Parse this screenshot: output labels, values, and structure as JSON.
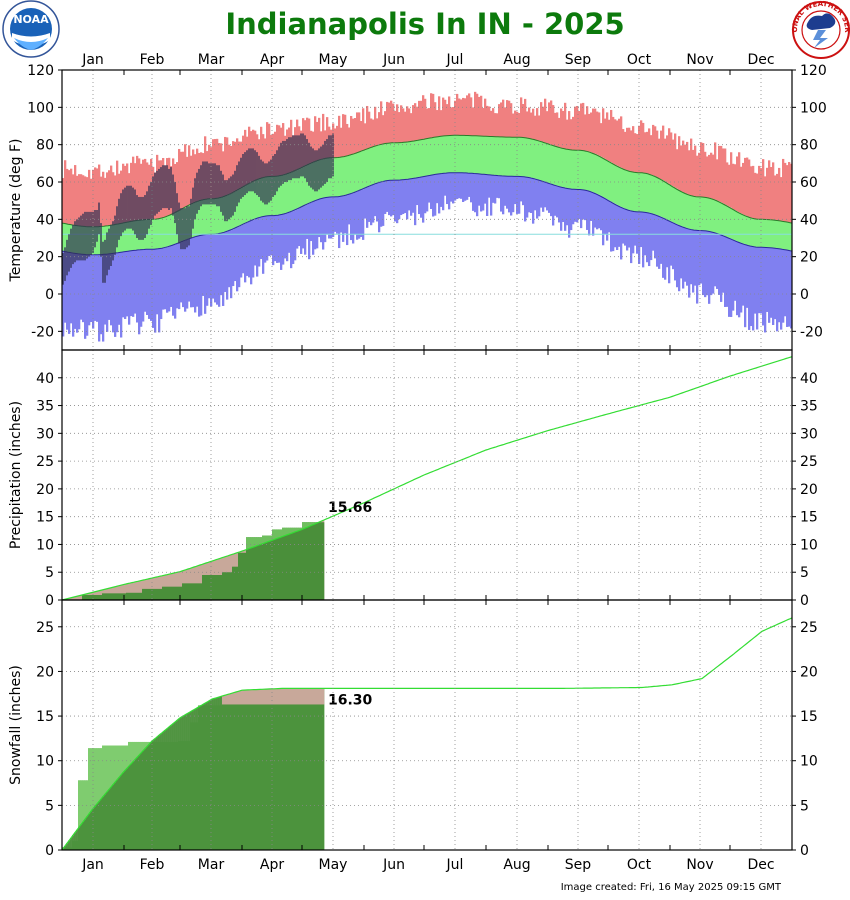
{
  "title": "Indianapolis In IN - 2025",
  "credit": "Image created: Fri, 16 May 2025 09:15 GMT",
  "logos": {
    "left": "NOAA",
    "right": "NATIONAL WEATHER SERVICE"
  },
  "months": [
    "Jan",
    "Feb",
    "Mar",
    "Apr",
    "May",
    "Jun",
    "Jul",
    "Aug",
    "Sep",
    "Oct",
    "Nov",
    "Dec"
  ],
  "colors": {
    "record_band": "#f08080",
    "normal_band": "#80f080",
    "cold_band": "#8080f0",
    "observed_bar": "#333355",
    "precip_obs": "#4a8f3a",
    "precip_norm_fill": "#c8a89a",
    "normal_line": "#33dd33"
  },
  "chart_data": [
    {
      "type": "bar",
      "title": "",
      "ylabel": "Temperature (deg F)",
      "ylim": [
        -30,
        120
      ],
      "yticks": [
        -20,
        0,
        20,
        40,
        60,
        80,
        100,
        120
      ],
      "normal_high_monthly": [
        36,
        40,
        51,
        63,
        73,
        81,
        85,
        84,
        77,
        65,
        52,
        40
      ],
      "normal_low_monthly": [
        21,
        24,
        32,
        42,
        52,
        61,
        65,
        63,
        56,
        44,
        34,
        25
      ],
      "record_high_monthly": [
        66,
        70,
        80,
        88,
        92,
        100,
        104,
        101,
        98,
        90,
        78,
        68
      ],
      "record_low_monthly": [
        -20,
        -15,
        -5,
        15,
        30,
        40,
        48,
        45,
        35,
        20,
        0,
        -15
      ],
      "observed_daily_highs_days_1_to_136": [
        22,
        25,
        29,
        32,
        35,
        37,
        39,
        40,
        41,
        42,
        43,
        44,
        44,
        44,
        44,
        44,
        45,
        45,
        49,
        38,
        28,
        29,
        33,
        35,
        37,
        39,
        42,
        47,
        51,
        54,
        56,
        57,
        58,
        58,
        58,
        57,
        56,
        53,
        52,
        52,
        52,
        53,
        55,
        58,
        60,
        63,
        65,
        66,
        67,
        68,
        69,
        69,
        69,
        67,
        68,
        64,
        60,
        54,
        49,
        46,
        46,
        46,
        47,
        47,
        51,
        57,
        62,
        65,
        67,
        69,
        71,
        71,
        71,
        70,
        70,
        70,
        70,
        69,
        69,
        66,
        64,
        61,
        61,
        62,
        63,
        64,
        66,
        69,
        71,
        73,
        75,
        76,
        77,
        78,
        78,
        78,
        77,
        76,
        74,
        72,
        71,
        70,
        70,
        71,
        72,
        74,
        75,
        77,
        79,
        81,
        82,
        82,
        83,
        84,
        84,
        85,
        85,
        85,
        85,
        86,
        86,
        85,
        83,
        81,
        79,
        78,
        77,
        77,
        78,
        79,
        80,
        82,
        83,
        85,
        85,
        86
      ],
      "observed_daily_lows_days_1_to_136": [
        5,
        7,
        10,
        12,
        14,
        16,
        17,
        18,
        18,
        18,
        18,
        18,
        19,
        20,
        21,
        22,
        25,
        28,
        32,
        20,
        6,
        6,
        10,
        13,
        15,
        18,
        21,
        25,
        29,
        31,
        33,
        34,
        35,
        35,
        35,
        34,
        32,
        30,
        29,
        29,
        29,
        30,
        32,
        35,
        37,
        40,
        42,
        43,
        44,
        45,
        46,
        46,
        46,
        45,
        46,
        42,
        38,
        32,
        27,
        24,
        24,
        24,
        25,
        26,
        30,
        35,
        40,
        43,
        45,
        47,
        48,
        48,
        48,
        48,
        48,
        48,
        48,
        47,
        47,
        44,
        42,
        39,
        39,
        40,
        41,
        42,
        44,
        47,
        49,
        51,
        52,
        53,
        54,
        55,
        55,
        55,
        54,
        53,
        52,
        50,
        49,
        48,
        48,
        49,
        50,
        52,
        53,
        55,
        57,
        58,
        59,
        60,
        60,
        61,
        61,
        62,
        62,
        62,
        62,
        63,
        63,
        62,
        60,
        58,
        57,
        56,
        55,
        55,
        56,
        57,
        58,
        59,
        60,
        62,
        62,
        63
      ]
    },
    {
      "type": "area",
      "title": "",
      "ylabel": "Precipitation (inches)",
      "ylim": [
        0,
        45
      ],
      "yticks": [
        0,
        5,
        10,
        15,
        20,
        25,
        30,
        35,
        40
      ],
      "normal_cumulative_monthly_end": [
        2.8,
        5.1,
        8.8,
        12.7,
        17.5,
        22.5,
        27.0,
        30.5,
        33.5,
        36.5,
        40.3,
        43.8
      ],
      "observed_cumulative_points": [
        [
          0,
          0.0
        ],
        [
          10,
          0.9
        ],
        [
          20,
          1.2
        ],
        [
          32,
          1.3
        ],
        [
          40,
          2.0
        ],
        [
          50,
          2.4
        ],
        [
          60,
          3.0
        ],
        [
          70,
          4.5
        ],
        [
          80,
          5.0
        ],
        [
          85,
          6.0
        ],
        [
          88,
          8.5
        ],
        [
          92,
          11.3
        ],
        [
          100,
          11.6
        ],
        [
          105,
          12.7
        ],
        [
          110,
          13.0
        ],
        [
          120,
          14.0
        ],
        [
          131,
          15.66
        ]
      ],
      "annotation": "15.66"
    },
    {
      "type": "area",
      "title": "",
      "ylabel": "Snowfall (inches)",
      "ylim": [
        0,
        28
      ],
      "yticks": [
        0,
        5,
        10,
        15,
        20,
        25
      ],
      "normal_cumulative_points": [
        [
          0,
          0.0
        ],
        [
          15,
          4.5
        ],
        [
          31,
          8.8
        ],
        [
          45,
          12.2
        ],
        [
          59,
          14.8
        ],
        [
          75,
          16.9
        ],
        [
          90,
          17.9
        ],
        [
          110,
          18.1
        ],
        [
          170,
          18.1
        ],
        [
          250,
          18.1
        ],
        [
          290,
          18.2
        ],
        [
          305,
          18.5
        ],
        [
          320,
          19.2
        ],
        [
          335,
          21.8
        ],
        [
          350,
          24.5
        ],
        [
          365,
          26.0
        ]
      ],
      "observed_cumulative_points": [
        [
          0,
          0.3
        ],
        [
          5,
          1.0
        ],
        [
          8,
          7.8
        ],
        [
          13,
          11.4
        ],
        [
          20,
          11.7
        ],
        [
          30,
          11.7
        ],
        [
          33,
          12.1
        ],
        [
          58,
          12.2
        ],
        [
          64,
          14.3
        ],
        [
          68,
          16.2
        ],
        [
          80,
          16.3
        ],
        [
          131,
          16.3
        ]
      ],
      "annotation": "16.30"
    }
  ]
}
